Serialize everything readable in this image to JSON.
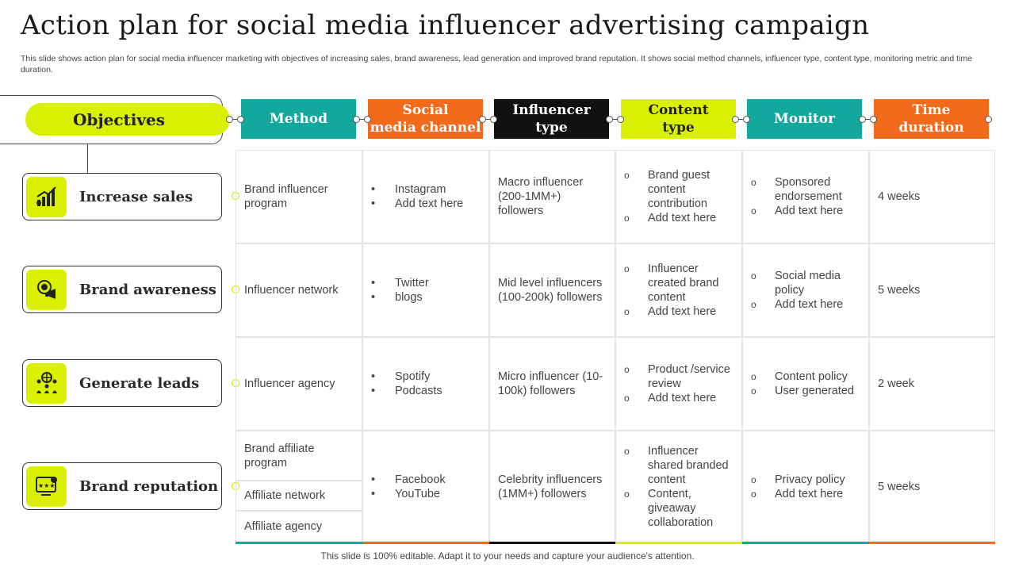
{
  "title": "Action plan for social media influencer advertising campaign",
  "subtitle": "This slide shows action plan for social media influencer marketing with objectives of increasing sales, brand awareness, lead generation and improved brand reputation. It shows social method channels, influencer type, content type, monitoring metric and time duration.",
  "objectives_header": "Objectives",
  "columns": [
    {
      "label": "Method",
      "color": "#13a89e"
    },
    {
      "label": "Social media channel",
      "line1": "Social",
      "line2": "media channel",
      "color": "#f26a1b"
    },
    {
      "label": "Influencer type",
      "line1": "Influencer",
      "line2": "type",
      "color": "#111111"
    },
    {
      "label": "Content type",
      "line1": "Content",
      "line2": "type",
      "color": "#d9f000"
    },
    {
      "label": "Monitor",
      "color": "#13a89e"
    },
    {
      "label": "Time duration",
      "line1": "Time",
      "line2": "duration",
      "color": "#f26a1b"
    }
  ],
  "objectives": [
    {
      "label": "Increase sales",
      "icon": "growth-chart-icon"
    },
    {
      "label": "Brand awareness",
      "icon": "megaphone-icon"
    },
    {
      "label": "Generate leads",
      "icon": "network-leads-icon"
    },
    {
      "label": "Brand reputation",
      "icon": "rating-stars-icon"
    }
  ],
  "rows": [
    {
      "method": "Brand influencer program",
      "channels": [
        "Instagram",
        "Add text here"
      ],
      "influencer": "Macro influencer (200-1MM+) followers",
      "content": [
        "Brand guest content contribution",
        "Add text here"
      ],
      "monitor": [
        "Sponsored endorsement",
        "Add text here"
      ],
      "time": "4 weeks"
    },
    {
      "method": "Influencer network",
      "channels": [
        "Twitter",
        "blogs"
      ],
      "influencer": "Mid level influencers (100-200k) followers",
      "content": [
        "Influencer created brand content",
        "Add text here"
      ],
      "monitor": [
        "Social media policy",
        "Add text here"
      ],
      "time": "5 weeks"
    },
    {
      "method": "Influencer agency",
      "channels": [
        "Spotify",
        "Podcasts"
      ],
      "influencer": "Micro influencer (10-100k) followers",
      "content": [
        "Product /service review",
        "Add text here"
      ],
      "monitor": [
        "Content policy",
        "User generated"
      ],
      "time": "2 week"
    },
    {
      "methods": [
        "Brand affiliate program",
        "Affiliate network",
        "Affiliate agency"
      ],
      "channels": [
        "Facebook",
        "YouTube"
      ],
      "influencer": "Celebrity influencers (1MM+) followers",
      "content": [
        "Influencer shared branded content",
        "Content, giveaway collaboration"
      ],
      "monitor": [
        "Privacy policy",
        "Add text here"
      ],
      "time": "5 weeks"
    }
  ],
  "footer": "This slide is 100% editable. Adapt it to your needs and capture your audience's attention."
}
